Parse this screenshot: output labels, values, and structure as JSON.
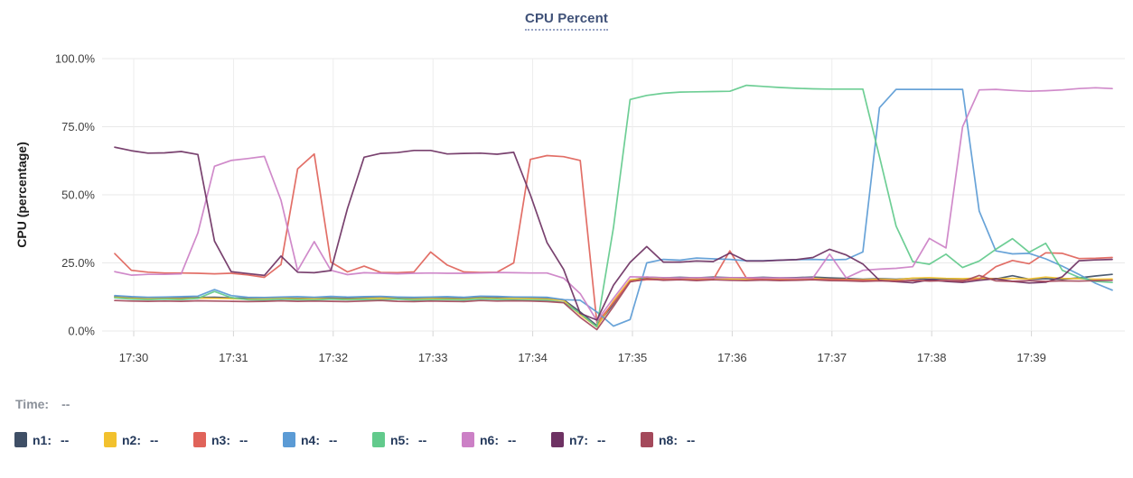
{
  "title": "CPU Percent",
  "time_row": {
    "label": "Time:",
    "value": "--"
  },
  "legend": [
    {
      "label": "n1:",
      "value": "--"
    },
    {
      "label": "n2:",
      "value": "--"
    },
    {
      "label": "n3:",
      "value": "--"
    },
    {
      "label": "n4:",
      "value": "--"
    },
    {
      "label": "n5:",
      "value": "--"
    },
    {
      "label": "n6:",
      "value": "--"
    },
    {
      "label": "n7:",
      "value": "--"
    },
    {
      "label": "n8:",
      "value": "--"
    }
  ],
  "colors": {
    "accent_title": "#3f5178",
    "legend_text": "#24395b",
    "grid": "#e9e9e9",
    "tick_text": "#3f3f3f"
  },
  "chart_data": {
    "type": "line",
    "title": "CPU Percent",
    "xlabel": "",
    "ylabel": "CPU (percentage)",
    "ylim": [
      0,
      100
    ],
    "grid": true,
    "legend_position": "bottom",
    "x_tick_labels": [
      "17:30",
      "17:31",
      "17:32",
      "17:33",
      "17:34",
      "17:35",
      "17:36",
      "17:37",
      "17:38",
      "17:39"
    ],
    "y_tick_labels": [
      "0.0%",
      "25.0%",
      "50.0%",
      "75.0%",
      "100.0%"
    ],
    "y_tick_values": [
      0,
      25,
      50,
      75,
      100
    ],
    "x_start_min": -0.19,
    "x_step_min": 0.16667,
    "x_unit": "minutes after 17:30, samples every 10s",
    "series": [
      {
        "name": "n1",
        "color": "#3f4f66",
        "values": [
          12.6,
          12.3,
          12.1,
          12.2,
          12.1,
          12.3,
          12.4,
          12.2,
          12.0,
          12.1,
          12.3,
          12.0,
          12.2,
          12.1,
          12.0,
          12.2,
          12.4,
          12.1,
          12.0,
          12.2,
          12.1,
          12.0,
          12.4,
          12.2,
          12.4,
          12.2,
          12.0,
          11.5,
          7.0,
          2.0,
          10.0,
          18.5,
          19.8,
          19.5,
          19.7,
          19.5,
          19.8,
          19.6,
          19.5,
          19.7,
          19.5,
          19.6,
          19.8,
          19.5,
          19.3,
          19.0,
          19.2,
          19.0,
          19.3,
          19.0,
          19.2,
          19.0,
          19.3,
          19.1,
          20.3,
          19.0,
          19.2,
          19.0,
          19.5,
          20.2,
          20.8
        ]
      },
      {
        "name": "n2",
        "color": "#f2c12e",
        "values": [
          12.4,
          12.0,
          11.8,
          11.9,
          11.8,
          12.1,
          12.0,
          11.9,
          11.7,
          11.8,
          12.0,
          11.8,
          11.9,
          11.8,
          11.7,
          11.9,
          12.1,
          11.8,
          11.7,
          11.9,
          11.8,
          11.7,
          12.1,
          11.9,
          12.0,
          11.9,
          11.7,
          11.2,
          6.0,
          1.5,
          11.0,
          18.8,
          19.3,
          19.0,
          19.2,
          19.0,
          19.3,
          19.1,
          19.0,
          19.2,
          19.0,
          19.1,
          19.3,
          19.0,
          18.9,
          18.8,
          19.0,
          18.8,
          19.4,
          19.6,
          19.3,
          19.2,
          19.4,
          19.2,
          19.3,
          19.1,
          19.8,
          19.3,
          19.2,
          19.0,
          19.1
        ]
      },
      {
        "name": "n3",
        "color": "#e0635a",
        "values": [
          28.4,
          22.3,
          21.6,
          21.3,
          21.3,
          21.2,
          21.0,
          21.2,
          20.6,
          19.7,
          24.4,
          59.5,
          65.0,
          25.3,
          21.7,
          23.8,
          21.5,
          21.4,
          21.7,
          29.0,
          24.2,
          21.7,
          21.5,
          21.6,
          25.0,
          63.0,
          64.4,
          64.0,
          62.6,
          3.0,
          10.4,
          18.2,
          18.8,
          18.9,
          18.9,
          18.8,
          18.9,
          29.4,
          19.4,
          18.9,
          18.8,
          18.8,
          18.9,
          19.0,
          18.8,
          18.6,
          18.5,
          18.4,
          18.5,
          18.5,
          18.5,
          18.5,
          19.0,
          23.6,
          25.9,
          24.7,
          28.7,
          28.5,
          26.6,
          26.7,
          27.0
        ]
      },
      {
        "name": "n4",
        "color": "#5b9bd5",
        "values": [
          13.0,
          12.6,
          12.4,
          12.5,
          12.6,
          12.8,
          15.2,
          13.0,
          12.4,
          12.3,
          12.5,
          12.6,
          12.4,
          12.7,
          12.5,
          12.6,
          12.7,
          12.5,
          12.4,
          12.5,
          12.6,
          12.4,
          12.8,
          12.7,
          12.5,
          12.5,
          12.4,
          11.5,
          11.3,
          7.0,
          1.8,
          4.2,
          25.0,
          26.3,
          26.0,
          26.8,
          26.5,
          26.3,
          25.8,
          25.8,
          26.0,
          26.2,
          26.3,
          26.1,
          26.3,
          29.0,
          82.0,
          88.7,
          88.7,
          88.7,
          88.7,
          88.7,
          44.0,
          29.4,
          28.3,
          28.5,
          26.5,
          23.8,
          20.8,
          17.5,
          15.0
        ]
      },
      {
        "name": "n5",
        "color": "#62ca8c",
        "values": [
          12.2,
          11.7,
          11.5,
          11.7,
          11.5,
          12.0,
          14.5,
          12.3,
          11.5,
          11.4,
          11.7,
          11.5,
          11.4,
          11.7,
          11.5,
          11.6,
          11.5,
          11.7,
          11.4,
          11.5,
          11.5,
          11.4,
          11.8,
          11.6,
          11.5,
          11.4,
          11.3,
          10.5,
          6.5,
          1.5,
          38.0,
          85.0,
          86.5,
          87.3,
          87.7,
          87.8,
          87.9,
          88.0,
          90.2,
          89.8,
          89.4,
          89.1,
          88.9,
          88.8,
          88.8,
          88.8,
          64.0,
          38.5,
          25.5,
          24.5,
          28.2,
          23.3,
          25.7,
          30.0,
          33.9,
          28.9,
          32.2,
          22.3,
          19.7,
          18.2,
          17.8
        ]
      },
      {
        "name": "n6",
        "color": "#cc80c6",
        "values": [
          21.8,
          20.5,
          20.8,
          20.8,
          21.0,
          36.0,
          60.5,
          62.6,
          63.3,
          64.1,
          48.0,
          22.2,
          32.8,
          22.3,
          20.7,
          21.4,
          21.2,
          21.0,
          21.2,
          21.3,
          21.2,
          21.2,
          21.3,
          21.5,
          21.4,
          21.3,
          21.3,
          19.4,
          13.7,
          3.8,
          12.0,
          19.9,
          19.8,
          19.6,
          19.5,
          19.6,
          19.5,
          19.6,
          19.6,
          19.5,
          19.5,
          19.4,
          19.5,
          28.2,
          19.5,
          22.3,
          22.7,
          23.0,
          23.6,
          34.0,
          30.5,
          75.0,
          88.5,
          88.7,
          88.3,
          88.0,
          88.2,
          88.5,
          89.0,
          89.3,
          89.0
        ]
      },
      {
        "name": "n7",
        "color": "#6e3263",
        "values": [
          67.5,
          66.2,
          65.3,
          65.4,
          65.9,
          64.8,
          33.0,
          21.8,
          21.1,
          20.4,
          27.5,
          21.6,
          21.4,
          22.2,
          45.0,
          63.8,
          65.2,
          65.5,
          66.3,
          66.3,
          65.0,
          65.2,
          65.3,
          64.9,
          65.6,
          50.0,
          32.5,
          22.6,
          6.5,
          4.0,
          16.8,
          25.2,
          31.0,
          25.3,
          25.3,
          25.7,
          25.5,
          28.6,
          25.7,
          25.7,
          26.0,
          26.2,
          27.0,
          30.0,
          27.9,
          24.6,
          18.6,
          18.1,
          17.7,
          18.8,
          18.2,
          17.8,
          18.6,
          19.2,
          18.2,
          17.6,
          17.9,
          19.9,
          25.8,
          26.1,
          26.3
        ]
      },
      {
        "name": "n8",
        "color": "#a4495b",
        "values": [
          11.2,
          11.0,
          10.9,
          11.0,
          10.9,
          11.1,
          11.0,
          10.9,
          10.8,
          10.9,
          11.1,
          10.9,
          11.0,
          10.9,
          10.8,
          11.0,
          11.2,
          10.9,
          10.8,
          11.0,
          10.9,
          10.8,
          11.2,
          11.0,
          11.1,
          11.0,
          10.8,
          10.4,
          5.0,
          0.5,
          9.0,
          18.0,
          19.2,
          18.6,
          18.8,
          18.5,
          18.8,
          18.6,
          18.5,
          18.7,
          18.5,
          18.6,
          18.8,
          18.5,
          18.4,
          18.2,
          18.4,
          18.2,
          18.6,
          18.3,
          18.5,
          18.2,
          20.4,
          18.4,
          18.2,
          18.5,
          18.2,
          18.4,
          18.3,
          18.5,
          18.6
        ]
      }
    ]
  }
}
